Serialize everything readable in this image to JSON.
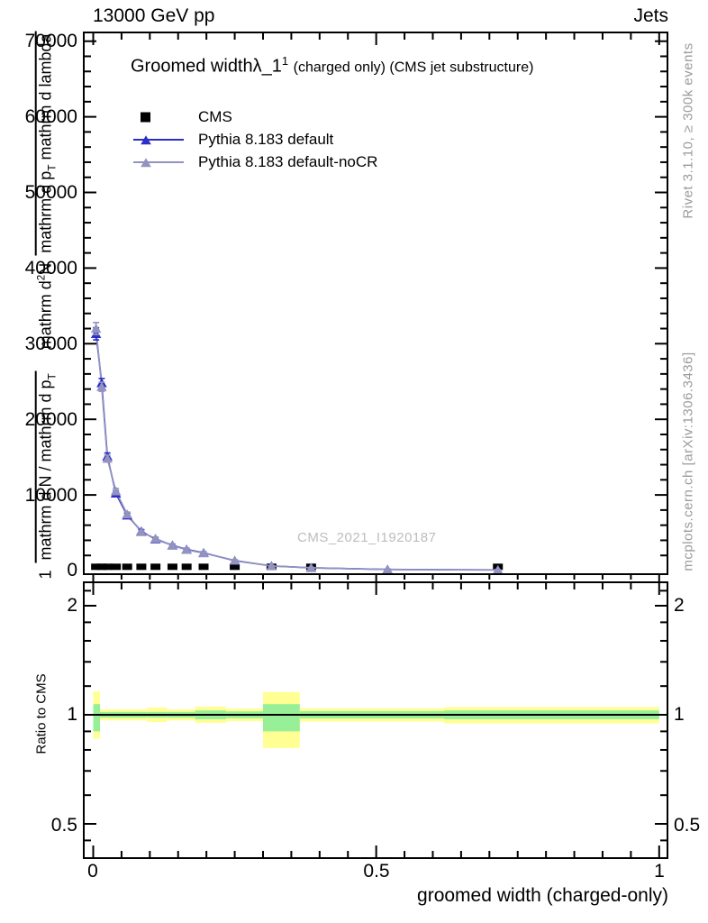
{
  "header": {
    "beam": "13000 GeV pp",
    "analysis_group": "Jets"
  },
  "title": {
    "main": "Groomed widthλ_1",
    "superscript": "1",
    "detail": "(charged only) (CMS jet substructure)"
  },
  "legend": {
    "items": [
      {
        "label": "CMS",
        "marker": "square",
        "color": "#000000"
      },
      {
        "label": "Pythia 8.183 default",
        "marker": "triangle-line",
        "color": "#2d2dc9"
      },
      {
        "label": "Pythia 8.183 default-noCR",
        "marker": "triangle-line",
        "color": "#9393bf"
      }
    ]
  },
  "watermark": "CMS_2021_I1920187",
  "side_notes": {
    "top": "Rivet 3.1.10, ≥ 300k events",
    "bottom": "mcplots.cern.ch [arXiv:1306.3436]"
  },
  "axes": {
    "x": {
      "label": "groomed width (charged-only)",
      "tick_labels": [
        "0",
        "0.5",
        "1"
      ],
      "major_ticks": [
        0,
        0.5,
        1
      ],
      "minor_step": 0.05,
      "range": [
        -0.018,
        1.013
      ]
    },
    "y_main": {
      "tick_labels": [
        "70000",
        "60000",
        "50000",
        "40000",
        "30000",
        "20000",
        "10000",
        "0"
      ],
      "major_step": 10000,
      "minor_step": 2000,
      "range": [
        0,
        71300
      ],
      "label_frac1": {
        "num": "1",
        "den_a": "mathrm d N / mathrm d p",
        "den_sub": "T"
      },
      "label_frac2": {
        "num_a": "mathrm d",
        "num_sup": "2",
        "num_b": "N",
        "den_a": "mathrm d p",
        "den_sub": "T",
        "den_b": " mathrm d lambda"
      }
    },
    "y_ratio": {
      "label": "Ratio to CMS",
      "tick_labels": [
        "2",
        "1",
        "0.5"
      ],
      "major_ticks": [
        2,
        1,
        0.5
      ],
      "minor_ticks": [
        0.45,
        0.6,
        0.7,
        0.8,
        0.9,
        1.2,
        1.4,
        1.6,
        1.8,
        2.2
      ],
      "scale": "log",
      "range": [
        0.4,
        2.33
      ]
    }
  },
  "colors": {
    "band_yellow": "#ffff94",
    "band_green": "#97f097",
    "frame": "#000000",
    "watermark": "#bdbdbd",
    "side_note": "#9b9b9b"
  },
  "chart_data": {
    "type": "line",
    "title": "Groomed width lambda_1^1 (charged only) (CMS jet substructure)",
    "xlabel": "groomed width (charged-only)",
    "ylabel": "1/(dN/dp_T) d^2N/(dp_T dlambda)",
    "xlim": [
      -0.018,
      1.013
    ],
    "ylim": [
      0,
      71300
    ],
    "legend_position": "top-left",
    "grid": false,
    "series": [
      {
        "name": "CMS",
        "type": "scatter",
        "marker": "square",
        "color": "#000000",
        "x": [
          0.005,
          0.015,
          0.025,
          0.04,
          0.06,
          0.085,
          0.11,
          0.14,
          0.165,
          0.195,
          0.25,
          0.315,
          0.385,
          0.715
        ],
        "y": [
          500,
          500,
          500,
          500,
          500,
          500,
          500,
          500,
          500,
          500,
          500,
          500,
          500,
          500
        ]
      },
      {
        "name": "Pythia 8.183 default",
        "type": "line",
        "marker": "triangle",
        "color": "#2d2dc9",
        "x": [
          0.005,
          0.015,
          0.025,
          0.04,
          0.06,
          0.085,
          0.11,
          0.14,
          0.165,
          0.195,
          0.25,
          0.315,
          0.385,
          0.52,
          0.715
        ],
        "y": [
          31300,
          24800,
          15100,
          10200,
          7300,
          5200,
          4150,
          3350,
          2800,
          2350,
          1300,
          620,
          360,
          150,
          80
        ],
        "yerr": [
          800,
          600,
          450,
          350,
          280,
          220,
          180,
          150,
          130,
          110,
          80,
          60,
          50,
          40,
          30
        ]
      },
      {
        "name": "Pythia 8.183 default-noCR",
        "type": "line",
        "marker": "triangle",
        "color": "#9393bf",
        "x": [
          0.005,
          0.015,
          0.025,
          0.04,
          0.06,
          0.085,
          0.11,
          0.14,
          0.165,
          0.195,
          0.25,
          0.315,
          0.385,
          0.52,
          0.715
        ],
        "y": [
          32000,
          24300,
          14800,
          10500,
          7450,
          5100,
          4250,
          3300,
          2750,
          2300,
          1350,
          600,
          370,
          140,
          90
        ],
        "yerr": [
          800,
          600,
          450,
          350,
          280,
          220,
          180,
          150,
          130,
          110,
          80,
          60,
          50,
          40,
          30
        ]
      }
    ],
    "ratio": {
      "label": "Ratio to CMS",
      "reference": "CMS",
      "unity_line": true,
      "scale": "log",
      "segments": [
        {
          "x0": 0.0,
          "x1": 0.012,
          "yellow": [
            0.86,
            1.16
          ],
          "green": [
            0.9,
            1.07
          ]
        },
        {
          "x0": 0.012,
          "x1": 0.095,
          "yellow": [
            0.965,
            1.035
          ],
          "green": [
            0.982,
            1.018
          ]
        },
        {
          "x0": 0.095,
          "x1": 0.13,
          "yellow": [
            0.955,
            1.047
          ],
          "green": [
            0.982,
            1.018
          ]
        },
        {
          "x0": 0.13,
          "x1": 0.18,
          "yellow": [
            0.965,
            1.035
          ],
          "green": [
            0.982,
            1.018
          ]
        },
        {
          "x0": 0.18,
          "x1": 0.235,
          "yellow": [
            0.95,
            1.053
          ],
          "green": [
            0.972,
            1.028
          ]
        },
        {
          "x0": 0.235,
          "x1": 0.3,
          "yellow": [
            0.96,
            1.04
          ],
          "green": [
            0.978,
            1.022
          ]
        },
        {
          "x0": 0.3,
          "x1": 0.365,
          "yellow": [
            0.81,
            1.155
          ],
          "green": [
            0.9,
            1.07
          ]
        },
        {
          "x0": 0.365,
          "x1": 0.62,
          "yellow": [
            0.958,
            1.042
          ],
          "green": [
            0.977,
            1.023
          ]
        },
        {
          "x0": 0.62,
          "x1": 1.0,
          "yellow": [
            0.947,
            1.05
          ],
          "green": [
            0.972,
            1.028
          ]
        }
      ]
    }
  }
}
